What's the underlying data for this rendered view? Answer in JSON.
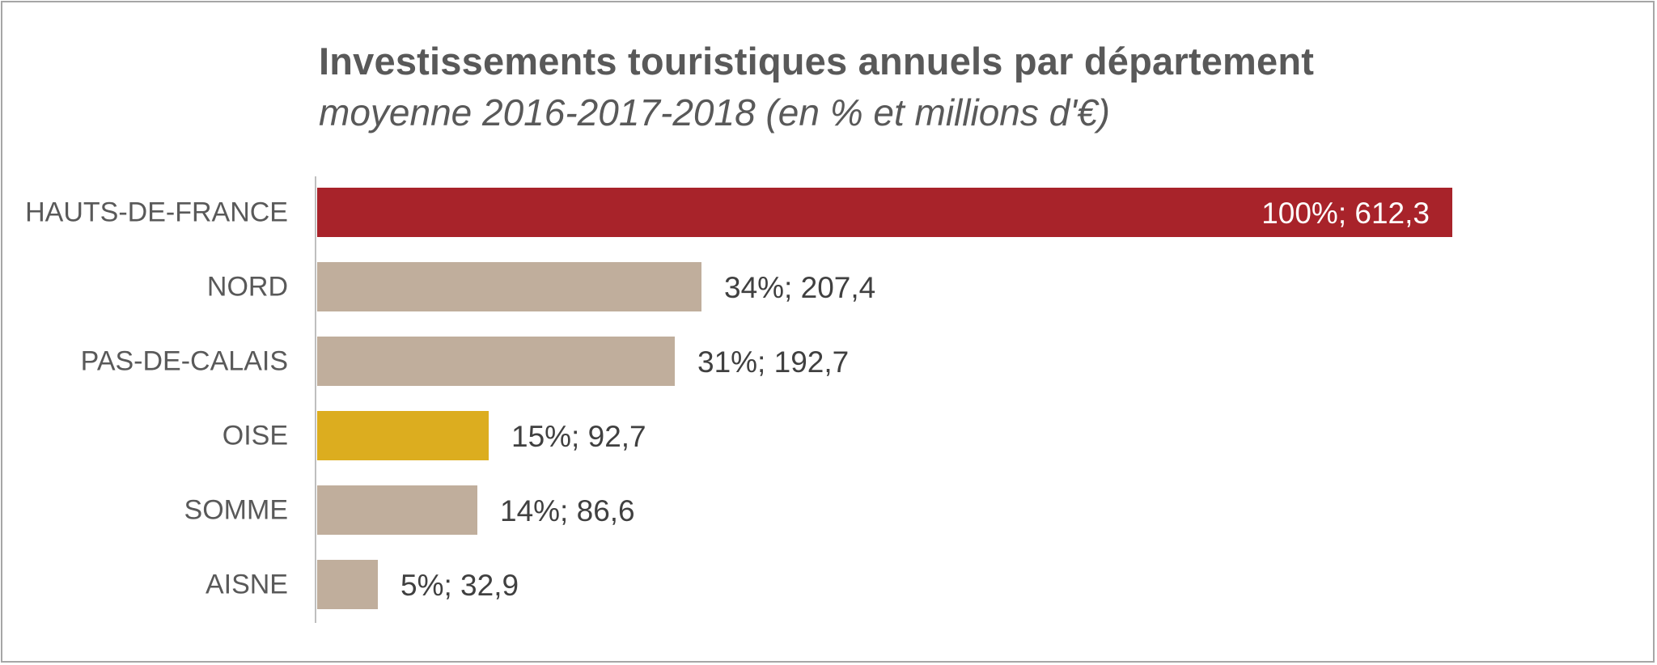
{
  "chart_data": {
    "type": "bar",
    "orientation": "horizontal",
    "title": "Investissements touristiques annuels par département",
    "subtitle": "moyenne 2016-2017-2018 (en % et millions d'€)",
    "categories": [
      "HAUTS-DE-FRANCE",
      "NORD",
      "PAS-DE-CALAIS",
      "OISE",
      "SOMME",
      "AISNE"
    ],
    "values": [
      612.3,
      207.4,
      192.7,
      92.7,
      86.6,
      32.9
    ],
    "data_labels": [
      "100%; 612,3",
      "34%; 207,4",
      "31%; 192,7",
      "15%; 92,7",
      "14%; 86,6",
      "5%; 32,9"
    ],
    "colors": [
      "#a8232a",
      "#c0ae9c",
      "#c0ae9c",
      "#dcad1f",
      "#c0ae9c",
      "#c0ae9c"
    ],
    "xlim": [
      0,
      612.3
    ],
    "grid": false,
    "legend": "none"
  }
}
